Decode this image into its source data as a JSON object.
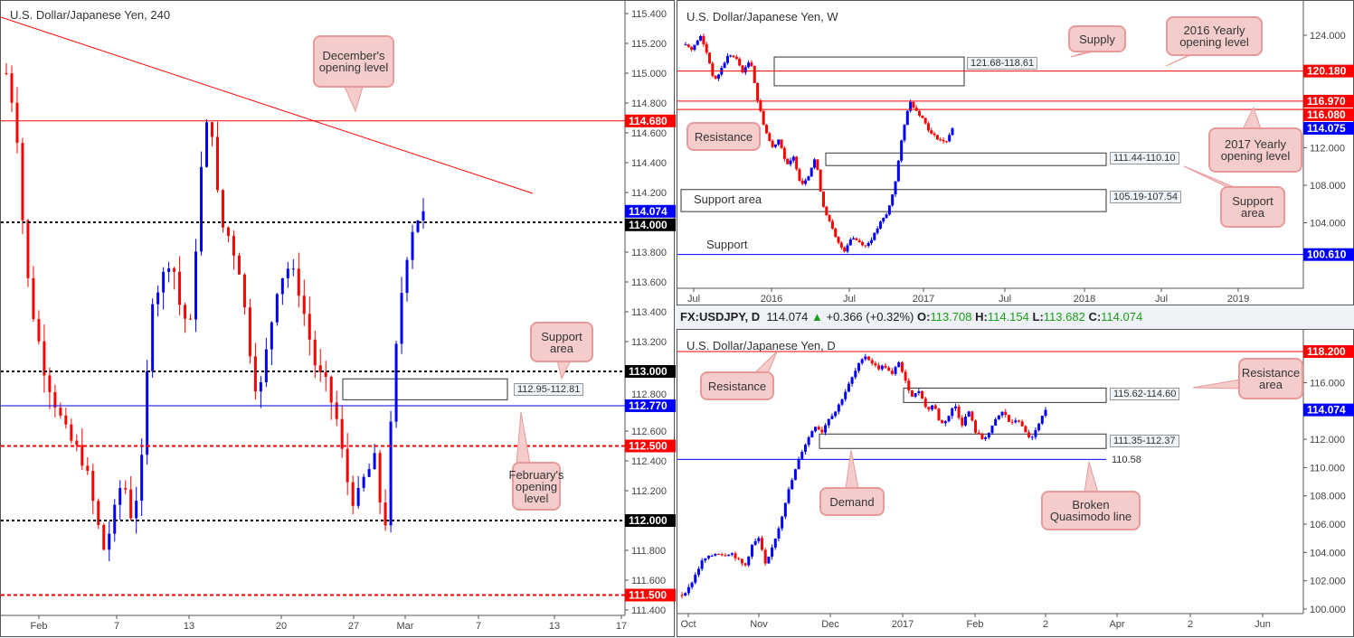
{
  "colors": {
    "up": "#0000ff",
    "down": "#ff0000",
    "callout_bg": "#f4cccc",
    "callout_border": "#e89a9a"
  },
  "left": {
    "title": "U.S. Dollar/Japanese Yen, 240",
    "ylim": [
      111.4,
      115.4
    ],
    "y_ticks": [
      "115.400",
      "115.200",
      "115.000",
      "114.800",
      "114.600",
      "114.400",
      "114.200",
      "113.800",
      "113.600",
      "113.400",
      "113.200",
      "112.800",
      "112.600",
      "112.400",
      "112.200",
      "111.800",
      "111.600",
      "111.400"
    ],
    "x_ticks": [
      "Feb",
      "7",
      "13",
      "20",
      "27",
      "Mar",
      "7",
      "13",
      "17"
    ],
    "levels": [
      {
        "price": 114.68,
        "label": "114.680",
        "color": "#ff0000",
        "style": "solid"
      },
      {
        "price": 114.074,
        "label": "114.074",
        "color": "#0000ff",
        "style": "none"
      },
      {
        "price": 114.0,
        "label": "114.000",
        "color": "#000000",
        "style": "dotted"
      },
      {
        "price": 113.0,
        "label": "113.000",
        "color": "#000000",
        "style": "dotted"
      },
      {
        "price": 112.77,
        "label": "112.770",
        "color": "#0000ff",
        "style": "solid"
      },
      {
        "price": 112.5,
        "label": "112.500",
        "color": "#ff0000",
        "style": "dashed"
      },
      {
        "price": 112.0,
        "label": "112.000",
        "color": "#000000",
        "style": "dotted"
      },
      {
        "price": 111.5,
        "label": "111.500",
        "color": "#ff0000",
        "style": "dashed"
      }
    ],
    "zone": {
      "label": "112.95-112.81",
      "high": 112.95,
      "low": 112.81
    },
    "closes": [
      115.0,
      114.7,
      113.7,
      113.3,
      113.0,
      112.8,
      112.6,
      112.5,
      112.4,
      112.1,
      111.8,
      112.0,
      112.3,
      112.0,
      112.4,
      113.5,
      113.6,
      113.8,
      113.4,
      113.3,
      114.3,
      114.8,
      114.0,
      113.9,
      113.7,
      113.2,
      112.8,
      113.2,
      113.6,
      113.7,
      113.6,
      113.3,
      113.0,
      112.9,
      112.7,
      112.3,
      112.1,
      112.3,
      112.4,
      111.9,
      113.0,
      113.7,
      114.0,
      114.074
    ],
    "callouts": [
      "December's opening level",
      "Support area",
      "February's opening level"
    ]
  },
  "weekly": {
    "title": "U.S. Dollar/Japanese Yen, W",
    "ylim": [
      100,
      124
    ],
    "y_ticks": [
      "124.000",
      "112.000",
      "108.000",
      "104.000"
    ],
    "x_ticks": [
      "Jul",
      "2016",
      "Jul",
      "2017",
      "Jul",
      "2018",
      "Jul",
      "2019"
    ],
    "levels": [
      {
        "price": 120.18,
        "label": "120.180",
        "color": "#ff0000",
        "style": "solid"
      },
      {
        "price": 116.97,
        "label": "116.970",
        "color": "#ff0000",
        "style": "solid"
      },
      {
        "price": 116.08,
        "label": "116.080",
        "color": "#ff0000",
        "style": "solid"
      },
      {
        "price": 114.075,
        "label": "114.075",
        "color": "#0000ff",
        "style": "none"
      },
      {
        "price": 100.61,
        "label": "100.610",
        "color": "#0000ff",
        "style": "solid"
      }
    ],
    "zones": [
      {
        "label": "121.68-118.61",
        "high": 121.68,
        "low": 118.61
      },
      {
        "label": "111.44-110.10",
        "high": 111.44,
        "low": 110.1
      },
      {
        "label": "105.19-107.54",
        "high": 107.54,
        "low": 105.19
      }
    ],
    "texts": [
      "Support area",
      "Support"
    ],
    "closes": [
      123,
      122.5,
      124,
      122,
      119,
      120.5,
      122,
      121.5,
      120,
      121.5,
      117,
      114,
      112,
      113,
      110,
      111,
      108,
      109,
      111,
      106,
      104,
      102,
      101,
      102.5,
      102,
      101.5,
      102.5,
      104,
      105,
      108,
      113,
      117,
      116,
      115,
      113.5,
      113,
      112.5,
      114.075
    ],
    "callouts": [
      "Supply",
      "2016 Yearly opening level",
      "Resistance",
      "2017 Yearly opening level",
      "Support area"
    ]
  },
  "daily": {
    "symbol": "FX:USDJPY, D",
    "last": "114.074",
    "change": "+0.366 (+0.32%)",
    "open": "113.708",
    "high": "114.154",
    "low": "113.682",
    "close": "114.074",
    "labels": {
      "o": "O:",
      "h": "H:",
      "l": "L:",
      "c": "C:"
    },
    "title": "U.S. Dollar/Japanese Yen, D",
    "ylim": [
      100,
      118.2
    ],
    "y_ticks": [
      "116.000",
      "112.000",
      "110.000",
      "108.000",
      "106.000",
      "104.000",
      "102.000",
      "100.000"
    ],
    "x_ticks": [
      "Oct",
      "Nov",
      "Dec",
      "2017",
      "Feb",
      "2",
      "Apr",
      "2",
      "Jun"
    ],
    "levels": [
      {
        "price": 118.2,
        "label": "118.200",
        "color": "#ff0000",
        "style": "solid"
      },
      {
        "price": 114.074,
        "label": "114.074",
        "color": "#0000ff",
        "style": "none"
      },
      {
        "price": 110.58,
        "label": "110.58",
        "color": "#0000ff",
        "style": "solid"
      }
    ],
    "zones": [
      {
        "label": "115.62-114.60",
        "high": 115.62,
        "low": 114.6
      },
      {
        "label": "111.35-112.37",
        "high": 112.37,
        "low": 111.35
      }
    ],
    "closes": [
      101,
      101.5,
      102.5,
      103.5,
      103.7,
      104,
      103.8,
      104,
      103.5,
      103,
      104.5,
      105,
      103,
      104.5,
      106,
      108,
      109.5,
      111,
      112,
      113,
      112.5,
      113.5,
      114,
      115,
      116,
      117,
      118,
      117.5,
      117,
      117.2,
      116.5,
      117.5,
      116,
      115,
      115.5,
      114,
      114.5,
      113,
      113.5,
      114.5,
      113,
      114,
      112.5,
      112,
      112.5,
      113.5,
      114,
      113,
      113.5,
      112.5,
      112,
      113,
      114.074
    ],
    "callouts": [
      "Resistance",
      "Resistance area",
      "Demand",
      "Broken Quasimodo line"
    ]
  }
}
